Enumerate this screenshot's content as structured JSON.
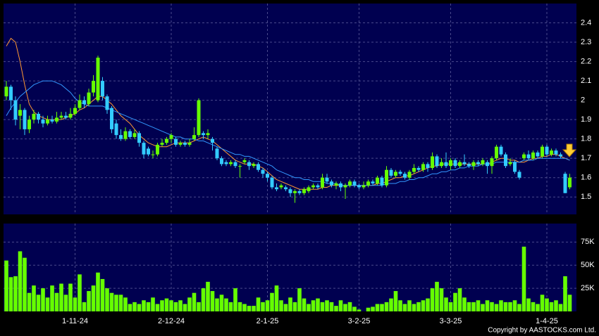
{
  "chart_data": [
    {
      "type": "candlestick",
      "categories": [
        null,
        null,
        null,
        null,
        null,
        null,
        null,
        null,
        null,
        null,
        null,
        null,
        null,
        null,
        null,
        "1-11-24",
        null,
        null,
        null,
        null,
        null,
        null,
        null,
        null,
        null,
        null,
        null,
        null,
        null,
        null,
        null,
        null,
        null,
        null,
        null,
        null,
        "2-12-24",
        null,
        null,
        null,
        null,
        null,
        null,
        null,
        null,
        null,
        null,
        null,
        null,
        null,
        null,
        null,
        null,
        null,
        null,
        null,
        null,
        "2-1-25",
        null,
        null,
        null,
        null,
        null,
        null,
        null,
        null,
        null,
        null,
        null,
        null,
        null,
        null,
        null,
        null,
        null,
        null,
        null,
        "3-2-25",
        null,
        null,
        null,
        null,
        null,
        null,
        null,
        null,
        null,
        null,
        null,
        null,
        null,
        null,
        null,
        null,
        null,
        null,
        null,
        "3-3-25",
        null,
        null,
        null,
        null,
        null,
        null,
        null,
        null,
        null,
        null,
        null,
        null,
        null,
        null,
        null,
        null,
        null,
        null,
        null,
        null,
        "1-4-25",
        null,
        null,
        null,
        null,
        null
      ],
      "open": [
        2.02,
        2.07,
        2.0,
        1.92,
        1.95,
        1.85,
        1.9,
        1.93,
        1.9,
        1.88,
        1.9,
        1.89,
        1.91,
        1.92,
        1.91,
        1.93,
        1.96,
        2.0,
        1.98,
        2.04,
        2.0,
        2.1,
        2.02,
        1.96,
        1.88,
        1.82,
        1.8,
        1.84,
        1.81,
        1.83,
        1.78,
        1.75,
        1.72,
        1.72,
        1.77,
        1.78,
        1.8,
        1.8,
        1.77,
        1.78,
        1.77,
        1.8,
        1.82,
        1.83,
        1.82,
        1.8,
        1.75,
        1.7,
        1.68,
        1.67,
        1.68,
        1.66,
        1.68,
        1.68,
        1.66,
        1.67,
        1.64,
        1.62,
        1.6,
        1.55,
        1.55,
        1.55,
        1.54,
        1.52,
        1.53,
        1.52,
        1.53,
        1.55,
        1.56,
        1.55,
        1.6,
        1.58,
        1.56,
        1.57,
        1.55,
        1.56,
        1.58,
        1.56,
        1.55,
        1.56,
        1.58,
        1.57,
        1.6,
        1.56,
        1.64,
        1.61,
        1.63,
        1.62,
        1.6,
        1.63,
        1.65,
        1.64,
        1.67,
        1.65,
        1.71,
        1.66,
        1.68,
        1.66,
        1.69,
        1.66,
        1.68,
        1.67,
        1.66,
        1.68,
        1.67,
        1.68,
        1.66,
        1.7,
        1.76,
        1.72,
        1.67,
        1.68,
        1.63,
        1.7,
        1.72,
        1.7,
        1.73,
        1.71,
        1.76,
        1.72,
        1.74,
        1.72,
        1.62,
        1.55
      ],
      "high": [
        2.1,
        2.08,
        2.02,
        1.98,
        1.96,
        1.92,
        1.95,
        1.94,
        1.92,
        1.92,
        1.92,
        1.94,
        1.94,
        1.94,
        1.96,
        1.98,
        2.03,
        2.02,
        2.06,
        2.13,
        2.23,
        2.12,
        2.03,
        1.97,
        1.9,
        1.85,
        1.86,
        1.85,
        1.85,
        1.84,
        1.79,
        1.76,
        1.74,
        1.78,
        1.8,
        1.81,
        1.83,
        1.81,
        1.79,
        1.79,
        1.8,
        1.86,
        2.01,
        1.84,
        1.85,
        1.81,
        1.76,
        1.71,
        1.69,
        1.69,
        1.69,
        1.67,
        1.7,
        1.69,
        1.68,
        1.68,
        1.65,
        1.63,
        1.61,
        1.57,
        1.57,
        1.56,
        1.55,
        1.54,
        1.54,
        1.55,
        1.56,
        1.57,
        1.57,
        1.62,
        1.62,
        1.59,
        1.58,
        1.58,
        1.57,
        1.59,
        1.59,
        1.57,
        1.58,
        1.59,
        1.59,
        1.61,
        1.61,
        1.66,
        1.65,
        1.64,
        1.64,
        1.63,
        1.64,
        1.67,
        1.66,
        1.68,
        1.68,
        1.73,
        1.72,
        1.7,
        1.73,
        1.7,
        1.7,
        1.69,
        1.72,
        1.68,
        1.69,
        1.69,
        1.7,
        1.69,
        1.71,
        1.77,
        1.77,
        1.73,
        1.7,
        1.69,
        1.64,
        1.73,
        1.74,
        1.74,
        1.74,
        1.77,
        1.77,
        1.75,
        1.75,
        1.73,
        1.63,
        1.62
      ],
      "low": [
        2.0,
        1.95,
        1.87,
        1.85,
        1.82,
        1.83,
        1.88,
        1.88,
        1.86,
        1.87,
        1.88,
        1.88,
        1.9,
        1.9,
        1.9,
        1.92,
        1.95,
        1.96,
        1.97,
        2.02,
        1.99,
        2.0,
        1.93,
        1.83,
        1.8,
        1.79,
        1.79,
        1.8,
        1.8,
        1.76,
        1.7,
        1.71,
        1.7,
        1.71,
        1.76,
        1.77,
        1.78,
        1.76,
        1.76,
        1.76,
        1.76,
        1.79,
        1.81,
        1.8,
        1.8,
        1.74,
        1.69,
        1.66,
        1.66,
        1.66,
        1.65,
        1.6,
        1.67,
        1.64,
        1.65,
        1.63,
        1.6,
        1.58,
        1.54,
        1.53,
        1.54,
        1.53,
        1.5,
        1.47,
        1.51,
        1.51,
        1.52,
        1.54,
        1.54,
        1.54,
        1.57,
        1.55,
        1.54,
        1.53,
        1.49,
        1.55,
        1.55,
        1.54,
        1.54,
        1.55,
        1.56,
        1.56,
        1.55,
        1.55,
        1.6,
        1.6,
        1.61,
        1.59,
        1.59,
        1.62,
        1.63,
        1.63,
        1.63,
        1.64,
        1.65,
        1.65,
        1.65,
        1.64,
        1.65,
        1.65,
        1.66,
        1.65,
        1.64,
        1.66,
        1.66,
        1.62,
        1.62,
        1.69,
        1.71,
        1.65,
        1.66,
        1.62,
        1.59,
        1.69,
        1.69,
        1.69,
        1.7,
        1.7,
        1.71,
        1.71,
        1.71,
        1.7,
        1.52,
        1.54
      ],
      "close": [
        2.07,
        2.0,
        1.9,
        1.95,
        1.85,
        1.9,
        1.93,
        1.9,
        1.88,
        1.9,
        1.89,
        1.91,
        1.92,
        1.91,
        1.93,
        1.96,
        2.0,
        1.98,
        2.04,
        2.1,
        2.22,
        2.02,
        1.95,
        1.85,
        1.82,
        1.8,
        1.84,
        1.81,
        1.83,
        1.78,
        1.72,
        1.72,
        1.72,
        1.77,
        1.78,
        1.8,
        1.82,
        1.77,
        1.78,
        1.77,
        1.78,
        1.82,
        2.0,
        1.82,
        1.83,
        1.78,
        1.7,
        1.67,
        1.67,
        1.68,
        1.66,
        1.66,
        1.69,
        1.66,
        1.67,
        1.64,
        1.62,
        1.6,
        1.55,
        1.54,
        1.56,
        1.54,
        1.52,
        1.53,
        1.52,
        1.54,
        1.55,
        1.56,
        1.55,
        1.6,
        1.58,
        1.56,
        1.57,
        1.55,
        1.56,
        1.58,
        1.56,
        1.55,
        1.56,
        1.58,
        1.57,
        1.6,
        1.56,
        1.64,
        1.61,
        1.63,
        1.62,
        1.6,
        1.63,
        1.65,
        1.64,
        1.67,
        1.65,
        1.71,
        1.66,
        1.68,
        1.66,
        1.69,
        1.66,
        1.68,
        1.67,
        1.66,
        1.68,
        1.67,
        1.69,
        1.66,
        1.7,
        1.76,
        1.72,
        1.66,
        1.68,
        1.63,
        1.6,
        1.72,
        1.7,
        1.73,
        1.71,
        1.76,
        1.72,
        1.74,
        1.72,
        1.71,
        1.52,
        1.6
      ],
      "up_color": "#66ff00",
      "down_color": "#33ccff",
      "series": [
        {
          "color": "#ff9933",
          "values": [
            2.28,
            2.32,
            2.3,
            2.2,
            2.08,
            1.98,
            1.94,
            1.92,
            1.91,
            1.9,
            1.9,
            1.9,
            1.9,
            1.91,
            1.92,
            1.93,
            1.95,
            1.96,
            1.98,
            2.0,
            2.02,
            2.02,
            2.0,
            1.98,
            1.95,
            1.92,
            1.9,
            1.88,
            1.85,
            1.82,
            1.8,
            1.78,
            1.77,
            1.76,
            1.76,
            1.76,
            1.77,
            1.78,
            1.78,
            1.78,
            1.78,
            1.79,
            1.8,
            1.81,
            1.8,
            1.79,
            1.77,
            1.75,
            1.73,
            1.71,
            1.69,
            1.68,
            1.67,
            1.67,
            1.67,
            1.66,
            1.65,
            1.63,
            1.61,
            1.59,
            1.58,
            1.57,
            1.56,
            1.55,
            1.54,
            1.54,
            1.54,
            1.54,
            1.54,
            1.55,
            1.55,
            1.56,
            1.56,
            1.56,
            1.56,
            1.56,
            1.56,
            1.56,
            1.56,
            1.56,
            1.56,
            1.57,
            1.57,
            1.58,
            1.59,
            1.6,
            1.6,
            1.61,
            1.61,
            1.62,
            1.63,
            1.64,
            1.65,
            1.66,
            1.66,
            1.67,
            1.67,
            1.67,
            1.67,
            1.67,
            1.67,
            1.67,
            1.67,
            1.67,
            1.67,
            1.67,
            1.68,
            1.69,
            1.7,
            1.7,
            1.69,
            1.69,
            1.68,
            1.68,
            1.69,
            1.7,
            1.7,
            1.71,
            1.71,
            1.72,
            1.72,
            1.71,
            1.7,
            1.69
          ]
        },
        {
          "color": "#3399ff",
          "values": [
            1.92,
            1.96,
            1.99,
            2.02,
            2.04,
            2.06,
            2.08,
            2.09,
            2.1,
            2.1,
            2.1,
            2.09,
            2.08,
            2.06,
            2.04,
            2.01,
            1.99,
            1.98,
            1.97,
            1.97,
            1.97,
            1.97,
            1.96,
            1.95,
            1.94,
            1.93,
            1.92,
            1.91,
            1.9,
            1.89,
            1.88,
            1.87,
            1.86,
            1.85,
            1.84,
            1.83,
            1.82,
            1.81,
            1.81,
            1.8,
            1.8,
            1.8,
            1.79,
            1.79,
            1.78,
            1.77,
            1.76,
            1.75,
            1.74,
            1.73,
            1.72,
            1.72,
            1.71,
            1.71,
            1.7,
            1.69,
            1.68,
            1.67,
            1.66,
            1.64,
            1.63,
            1.62,
            1.61,
            1.6,
            1.6,
            1.59,
            1.59,
            1.58,
            1.58,
            1.58,
            1.57,
            1.57,
            1.57,
            1.56,
            1.56,
            1.56,
            1.56,
            1.56,
            1.56,
            1.56,
            1.56,
            1.56,
            1.56,
            1.57,
            1.57,
            1.57,
            1.58,
            1.58,
            1.59,
            1.59,
            1.6,
            1.6,
            1.61,
            1.62,
            1.62,
            1.63,
            1.63,
            1.64,
            1.64,
            1.65,
            1.65,
            1.66,
            1.66,
            1.66,
            1.67,
            1.67,
            1.67,
            1.68,
            1.68,
            1.68,
            1.68,
            1.68,
            1.68,
            1.69,
            1.69,
            1.69,
            1.7,
            1.7,
            1.7,
            1.7,
            1.7,
            1.7,
            1.7,
            1.69
          ]
        }
      ],
      "ylim": [
        1.41,
        2.5
      ],
      "yticks": [
        1.5,
        1.6,
        1.7,
        1.8,
        1.9,
        2,
        2.1,
        2.2,
        2.3,
        2.4
      ],
      "grid": true
    },
    {
      "type": "bar",
      "color": "#66ff00",
      "values": [
        55000,
        37000,
        38000,
        65000,
        58000,
        20000,
        28000,
        18000,
        25000,
        15000,
        28000,
        20000,
        30000,
        18000,
        30000,
        15000,
        40000,
        10000,
        22000,
        28000,
        42000,
        35000,
        25000,
        20000,
        18000,
        18000,
        15000,
        8000,
        10000,
        8000,
        12000,
        10000,
        15000,
        8000,
        12000,
        14000,
        12000,
        10000,
        12000,
        8000,
        15000,
        20000,
        10000,
        25000,
        32000,
        22000,
        14000,
        18000,
        14000,
        10000,
        25000,
        10000,
        8000,
        6000,
        6000,
        15000,
        10000,
        12000,
        20000,
        28000,
        12000,
        8000,
        15000,
        10000,
        25000,
        14000,
        8000,
        12000,
        14000,
        10000,
        12000,
        10000,
        6000,
        12000,
        8000,
        10000,
        5000,
        2000,
        0,
        4000,
        5000,
        8000,
        8000,
        10000,
        14000,
        22000,
        12000,
        8000,
        12000,
        8000,
        10000,
        12000,
        14000,
        25000,
        32000,
        25000,
        15000,
        10000,
        20000,
        25000,
        15000,
        10000,
        10000,
        12000,
        8000,
        12000,
        10000,
        8000,
        12000,
        10000,
        10000,
        12000,
        8000,
        70000,
        14000,
        10000,
        8000,
        18000,
        14000,
        10000,
        12000,
        8000,
        38000,
        18000
      ],
      "ylim": [
        0,
        95000
      ],
      "yticks": [
        {
          "value": 25000,
          "label": "25K"
        },
        {
          "value": 50000,
          "label": "50K"
        },
        {
          "value": 75000,
          "label": "75K"
        }
      ],
      "grid": true
    }
  ],
  "copyright": "Copyright by AASTOCKS.com Ltd."
}
